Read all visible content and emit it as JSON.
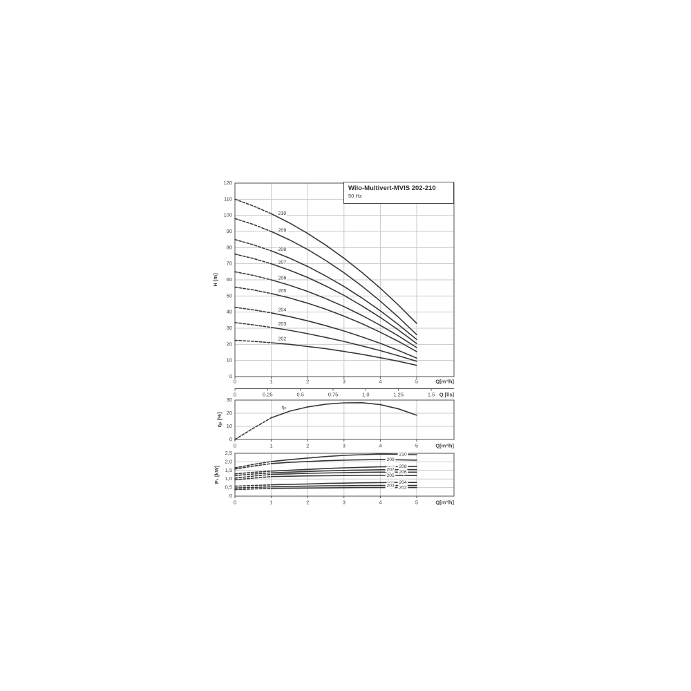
{
  "title_box": {
    "title": "Wilo-Multivert-MVIS 202-210",
    "subtitle": "50 Hz"
  },
  "colors": {
    "curve": "#383838",
    "grid": "#c9c9c9",
    "axis": "#4d4d4d",
    "text": "#3f3f3f",
    "background": "#ffffff"
  },
  "chart_data": [
    {
      "id": "head-flow",
      "type": "line",
      "title": "Wilo-Multivert-MVIS 202-210, 50 Hz",
      "xlabel": "Q[m³/h]",
      "ylabel": "H [m]",
      "xlim": [
        0,
        5
      ],
      "ylim": [
        0,
        120
      ],
      "grid": true,
      "dash_until_x": 1,
      "x_samples": [
        0,
        0.5,
        1,
        1.5,
        2,
        2.5,
        3,
        3.5,
        4,
        4.5,
        5
      ],
      "xtick_values": [
        0,
        1,
        2,
        3,
        4,
        5
      ],
      "xtick_labels": [
        "0",
        "1",
        "2",
        "3",
        "4",
        "5"
      ],
      "ytick_values": [
        0,
        10,
        20,
        30,
        40,
        50,
        60,
        70,
        80,
        90,
        100,
        110,
        120
      ],
      "ytick_labels": [
        "0",
        "10",
        "20",
        "30",
        "40",
        "50",
        "60",
        "70",
        "80",
        "90",
        "100",
        "110",
        "120"
      ],
      "label_mode": "above",
      "series": [
        {
          "name": "210",
          "values": [
            110,
            105.9,
            101,
            95.3,
            88.8,
            81.5,
            73.4,
            64.5,
            54.8,
            44.3,
            33
          ],
          "label": {
            "x": 1.3,
            "y": 101
          }
        },
        {
          "name": "209",
          "values": [
            98,
            94.4,
            90,
            84.8,
            78.8,
            72,
            64.4,
            56,
            46.8,
            36.8,
            26
          ],
          "label": {
            "x": 1.3,
            "y": 90.5
          }
        },
        {
          "name": "208",
          "values": [
            85,
            81.8,
            78,
            73.5,
            68.3,
            62.4,
            55.9,
            48.7,
            40.8,
            32.2,
            23
          ],
          "label": {
            "x": 1.3,
            "y": 78.8
          }
        },
        {
          "name": "207",
          "values": [
            76,
            73.3,
            70,
            66,
            61.5,
            56.2,
            50.4,
            43.8,
            36.7,
            28.9,
            20.5
          ],
          "label": {
            "x": 1.3,
            "y": 70.6
          }
        },
        {
          "name": "206",
          "values": [
            65,
            62.8,
            60,
            56.7,
            52.8,
            48.4,
            43.4,
            37.9,
            31.8,
            25.2,
            18
          ],
          "label": {
            "x": 1.3,
            "y": 61
          }
        },
        {
          "name": "205",
          "values": [
            55.5,
            53.8,
            51.5,
            48.8,
            45.5,
            41.8,
            37.5,
            32.8,
            27.5,
            21.8,
            15.5
          ],
          "label": {
            "x": 1.3,
            "y": 53
          }
        },
        {
          "name": "204",
          "values": [
            43,
            41.4,
            39.5,
            37.2,
            34.6,
            31.6,
            28.3,
            24.6,
            20.6,
            16.2,
            11.5
          ],
          "label": {
            "x": 1.3,
            "y": 41.2
          }
        },
        {
          "name": "203",
          "values": [
            33.5,
            32.1,
            30.5,
            28.7,
            26.6,
            24.3,
            21.8,
            19,
            16.1,
            12.9,
            9.5
          ],
          "label": {
            "x": 1.3,
            "y": 32.4
          }
        },
        {
          "name": "202",
          "values": [
            22.5,
            21.9,
            21,
            20,
            18.7,
            17.3,
            15.6,
            13.8,
            11.7,
            9.5,
            7
          ],
          "label": {
            "x": 1.3,
            "y": 23.2
          }
        }
      ],
      "secondary_axis": {
        "label": "Q [l/s]",
        "tick_values_lps": [
          0,
          0.25,
          0.5,
          0.75,
          1,
          1.25,
          1.5
        ],
        "tick_labels": [
          "0",
          "0.25",
          "0.5",
          "0.75",
          "1.0",
          "1.25",
          "1.5"
        ],
        "m3h_per_lps": 3.6
      }
    },
    {
      "id": "efficiency",
      "type": "line",
      "xlabel": "Q[m³/h]",
      "ylabel": "ηₚ [%]",
      "xlim": [
        0,
        5
      ],
      "ylim": [
        0,
        30
      ],
      "grid": true,
      "dash_until_x": 1,
      "x_samples": [
        0,
        0.5,
        1,
        1.5,
        2,
        2.5,
        3,
        3.5,
        4,
        4.5,
        5
      ],
      "xtick_values": [
        0,
        1,
        2,
        3,
        4,
        5
      ],
      "xtick_labels": [
        "0",
        "1",
        "2",
        "3",
        "4",
        "5"
      ],
      "ytick_values": [
        0,
        10,
        20,
        30
      ],
      "ytick_labels": [
        "0",
        "10",
        "20",
        "30"
      ],
      "label_mode": "above",
      "series": [
        {
          "name": "ηₚ",
          "values": [
            0,
            8.5,
            16.5,
            21.5,
            24.8,
            26.9,
            27.9,
            28,
            26.5,
            23.3,
            18.5
          ],
          "label": {
            "x": 1.35,
            "y": 24.5
          }
        }
      ]
    },
    {
      "id": "power",
      "type": "line",
      "xlabel": "Q[m³/h]",
      "ylabel": "P₁ [kW]",
      "xlim": [
        0,
        5
      ],
      "ylim": [
        0,
        2.5
      ],
      "grid": true,
      "dash_until_x": 1,
      "x_samples": [
        0,
        0.5,
        1,
        1.5,
        2,
        2.5,
        3,
        3.5,
        4,
        4.5,
        5
      ],
      "xtick_values": [
        0,
        1,
        2,
        3,
        4,
        5
      ],
      "xtick_labels": [
        "0",
        "1",
        "2",
        "3",
        "4",
        "5"
      ],
      "ytick_values": [
        0,
        0.5,
        1,
        1.5,
        2,
        2.5
      ],
      "ytick_labels": [
        "0",
        "0,5",
        "1,0",
        "1,5",
        "2,0",
        "2,5"
      ],
      "label_mode": "on-line",
      "series": [
        {
          "name": "210",
          "values": [
            1.65,
            1.85,
            2.02,
            2.13,
            2.22,
            2.31,
            2.38,
            2.42,
            2.45,
            2.44,
            2.42
          ],
          "label": {
            "x": 4.62,
            "y": 2.44
          }
        },
        {
          "name": "209",
          "values": [
            1.58,
            1.75,
            1.9,
            1.97,
            2.02,
            2.07,
            2.1,
            2.12,
            2.14,
            2.12,
            2.1
          ],
          "label": {
            "x": 4.28,
            "y": 2.12
          }
        },
        {
          "name": "208",
          "values": [
            1.3,
            1.39,
            1.46,
            1.51,
            1.56,
            1.61,
            1.65,
            1.68,
            1.71,
            1.72,
            1.73
          ],
          "label": {
            "x": 4.62,
            "y": 1.72
          }
        },
        {
          "name": "207",
          "values": [
            1.2,
            1.29,
            1.36,
            1.4,
            1.44,
            1.47,
            1.5,
            1.52,
            1.54,
            1.55,
            1.55
          ],
          "label": {
            "x": 4.28,
            "y": 1.54
          }
        },
        {
          "name": "206",
          "values": [
            1.05,
            1.17,
            1.27,
            1.3,
            1.33,
            1.35,
            1.37,
            1.39,
            1.4,
            1.4,
            1.4
          ],
          "label": {
            "x": 4.62,
            "y": 1.4
          }
        },
        {
          "name": "205",
          "values": [
            0.95,
            1.05,
            1.14,
            1.16,
            1.18,
            1.19,
            1.2,
            1.21,
            1.21,
            1.21,
            1.2
          ],
          "label": {
            "x": 4.28,
            "y": 1.21
          }
        },
        {
          "name": "204",
          "values": [
            0.58,
            0.62,
            0.66,
            0.69,
            0.71,
            0.74,
            0.76,
            0.78,
            0.79,
            0.8,
            0.8
          ],
          "label": {
            "x": 4.62,
            "y": 0.8
          }
        },
        {
          "name": "203",
          "values": [
            0.47,
            0.51,
            0.55,
            0.57,
            0.58,
            0.6,
            0.61,
            0.62,
            0.62,
            0.62,
            0.62
          ],
          "label": {
            "x": 4.28,
            "y": 0.62
          }
        },
        {
          "name": "202",
          "values": [
            0.38,
            0.42,
            0.45,
            0.46,
            0.47,
            0.48,
            0.49,
            0.5,
            0.5,
            0.5,
            0.5
          ],
          "label": {
            "x": 4.62,
            "y": 0.49
          }
        }
      ]
    }
  ]
}
